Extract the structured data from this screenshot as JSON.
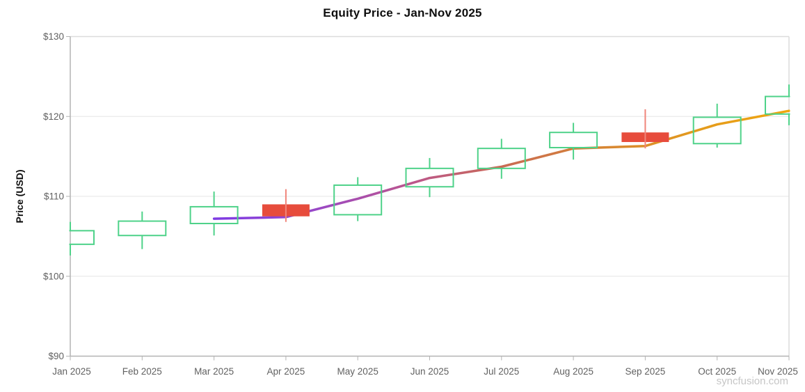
{
  "watermark": "syncfusion.com",
  "chart_data": {
    "type": "candlestick",
    "title": "Equity Price - Jan-Nov 2025",
    "xlabel": "",
    "ylabel": "Price (USD)",
    "ylim": [
      90,
      130
    ],
    "y_tick_step": 10,
    "y_ticks": [
      {
        "value": 90,
        "label": "$90"
      },
      {
        "value": 100,
        "label": "$100"
      },
      {
        "value": 110,
        "label": "$110"
      },
      {
        "value": 120,
        "label": "$120"
      },
      {
        "value": 130,
        "label": "$130"
      }
    ],
    "categories": [
      "Jan 2025",
      "Feb 2025",
      "Mar 2025",
      "Apr 2025",
      "May 2025",
      "Jun 2025",
      "Jul 2025",
      "Aug 2025",
      "Sep 2025",
      "Oct 2025",
      "Nov 2025"
    ],
    "grid": "horizontal-only",
    "legend": "none",
    "series": [
      {
        "name": "Equity Price",
        "type": "candlestick",
        "points": [
          {
            "x": "Jan 2025",
            "open": 104.0,
            "high": 106.8,
            "low": 102.6,
            "close": 105.7,
            "direction": "bull"
          },
          {
            "x": "Feb 2025",
            "open": 105.1,
            "high": 108.1,
            "low": 103.4,
            "close": 106.9,
            "direction": "bull"
          },
          {
            "x": "Mar 2025",
            "open": 106.6,
            "high": 110.6,
            "low": 105.1,
            "close": 108.7,
            "direction": "bull"
          },
          {
            "x": "Apr 2025",
            "open": 109.0,
            "high": 110.9,
            "low": 106.8,
            "close": 107.5,
            "direction": "bear"
          },
          {
            "x": "May 2025",
            "open": 107.7,
            "high": 112.4,
            "low": 106.9,
            "close": 111.4,
            "direction": "bull"
          },
          {
            "x": "Jun 2025",
            "open": 111.2,
            "high": 114.8,
            "low": 109.9,
            "close": 113.5,
            "direction": "bull"
          },
          {
            "x": "Jul 2025",
            "open": 113.5,
            "high": 117.2,
            "low": 112.2,
            "close": 116.0,
            "direction": "bull"
          },
          {
            "x": "Aug 2025",
            "open": 116.1,
            "high": 119.2,
            "low": 114.6,
            "close": 118.0,
            "direction": "bull"
          },
          {
            "x": "Sep 2025",
            "open": 118.0,
            "high": 120.9,
            "low": 116.0,
            "close": 116.8,
            "direction": "bear"
          },
          {
            "x": "Oct 2025",
            "open": 116.6,
            "high": 121.6,
            "low": 116.1,
            "close": 119.9,
            "direction": "bull"
          },
          {
            "x": "Nov 2025",
            "open": 120.3,
            "high": 124.0,
            "low": 118.9,
            "close": 122.5,
            "direction": "bull"
          }
        ]
      },
      {
        "name": "Trendline",
        "type": "line",
        "style": "gradient",
        "points": [
          {
            "x": "Mar 2025",
            "y": 107.2
          },
          {
            "x": "Apr 2025",
            "y": 107.4
          },
          {
            "x": "May 2025",
            "y": 109.7
          },
          {
            "x": "Jun 2025",
            "y": 112.3
          },
          {
            "x": "Jul 2025",
            "y": 113.7
          },
          {
            "x": "Aug 2025",
            "y": 116.0
          },
          {
            "x": "Sep 2025",
            "y": 116.3
          },
          {
            "x": "Oct 2025",
            "y": 119.0
          },
          {
            "x": "Nov 2025",
            "y": 120.7
          }
        ]
      }
    ],
    "colors": {
      "bull": "#4ed289",
      "bear": "#e74c3c",
      "bear_wick": "#f0857a",
      "trend_gradient": [
        "#7e3be4",
        "#9747c9",
        "#ba5590",
        "#c96a55",
        "#d68434",
        "#e39a1e",
        "#f0a60e"
      ],
      "grid": "#e5e5e5",
      "plot_border": "#dcdcdc",
      "axis": "#b3b3b3",
      "label": "#616161",
      "watermark": "#c6c6c6"
    }
  }
}
